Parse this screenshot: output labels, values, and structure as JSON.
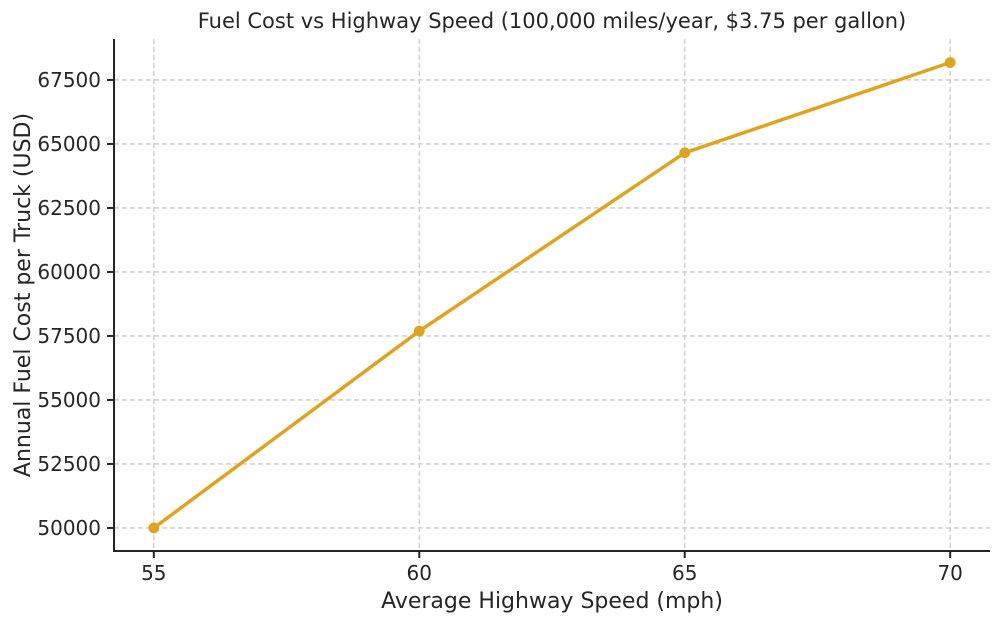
{
  "chart_data": {
    "type": "line",
    "title": "Fuel Cost vs Highway Speed (100,000 miles/year, $3.75 per gallon)",
    "xlabel": "Average Highway Speed (mph)",
    "ylabel": "Annual Fuel Cost per Truck (USD)",
    "x": [
      55,
      60,
      65,
      70
    ],
    "series": [
      {
        "name": "Annual fuel cost per truck",
        "values": [
          50000,
          57692,
          64655,
          68182
        ],
        "color": "#DFA41E",
        "marker": "circle"
      }
    ],
    "xticks": {
      "values": [
        55,
        60,
        65,
        70
      ],
      "labels": [
        "55",
        "60",
        "65",
        "70"
      ]
    },
    "yticks": {
      "values": [
        50000,
        52500,
        55000,
        57500,
        60000,
        62500,
        65000,
        67500
      ],
      "labels": [
        "50000",
        "52500",
        "55000",
        "57500",
        "60000",
        "62500",
        "65000",
        "67500"
      ]
    },
    "xlim": [
      54.25,
      70.75
    ],
    "ylim": [
      49100,
      69100
    ],
    "grid": {
      "visible": true,
      "style": "dashed",
      "color": "#cccccc"
    },
    "legend": {
      "visible": false,
      "position": "none"
    },
    "colors": {
      "text": "#262626",
      "spine": "#262626",
      "background": "#ffffff"
    }
  }
}
